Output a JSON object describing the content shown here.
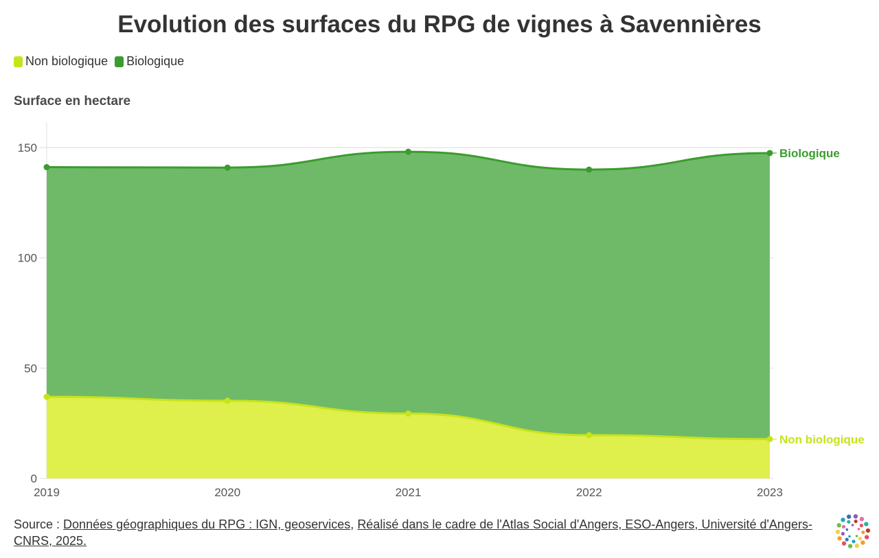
{
  "title": "Evolution des surfaces du RPG de vignes à Savennières",
  "legend": [
    {
      "label": "Non biologique",
      "color": "#c7e31a"
    },
    {
      "label": "Biologique",
      "color": "#3a9c2e"
    }
  ],
  "y_axis_title": "Surface en hectare",
  "footer": {
    "prefix": "Source : ",
    "link1": "Données géographiques du RPG : IGN, geoservices",
    "sep": ", ",
    "link2": "Réalisé dans le cadre de l'Atlas Social d'Angers, ESO-Angers, Université d'Angers-CNRS, 2025."
  },
  "chart_data": {
    "type": "area",
    "stacked": true,
    "title": "Evolution des surfaces du RPG de vignes à Savennières",
    "ylabel": "Surface en hectare",
    "xlabel": "",
    "categories": [
      "2019",
      "2020",
      "2021",
      "2022",
      "2023"
    ],
    "ylim": [
      0,
      160
    ],
    "yticks": [
      0,
      50,
      100,
      150
    ],
    "series": [
      {
        "name": "Non biologique",
        "color": "#c7e31a",
        "fill": "#dfef4c",
        "values": [
          37.0,
          35.2,
          29.4,
          19.6,
          17.8
        ],
        "end_label": "Non biologique"
      },
      {
        "name": "Biologique",
        "color": "#3a9c2e",
        "fill": "#6fba69",
        "values": [
          104.1,
          105.7,
          118.7,
          120.4,
          129.7
        ],
        "end_label": "Biologique"
      }
    ]
  }
}
